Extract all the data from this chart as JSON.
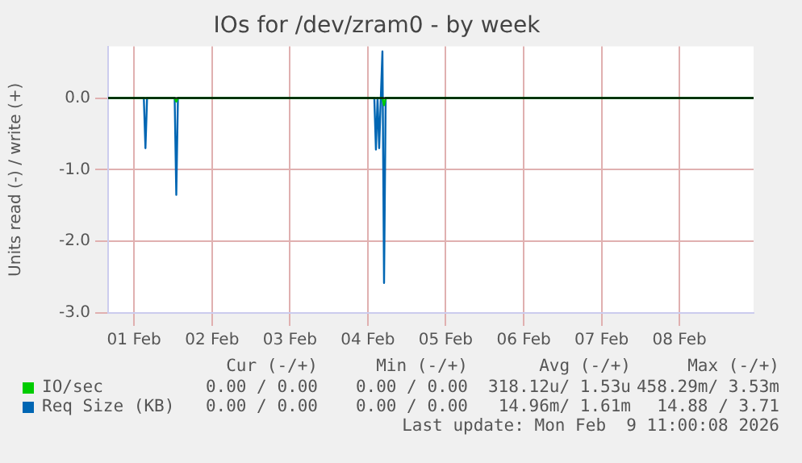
{
  "chart_data": {
    "type": "line",
    "title": "IOs for /dev/zram0 - by week",
    "ylabel": "Units read (-) / write (+)",
    "xlim": [
      "2026-02-01T04:00",
      "2026-02-09T10:50"
    ],
    "xticks": [
      {
        "value": "2026-02-01T12:00",
        "label": "01 Feb"
      },
      {
        "value": "2026-02-02T12:00",
        "label": "02 Feb"
      },
      {
        "value": "2026-02-03T12:00",
        "label": "03 Feb"
      },
      {
        "value": "2026-02-04T12:00",
        "label": "04 Feb"
      },
      {
        "value": "2026-02-05T12:00",
        "label": "05 Feb"
      },
      {
        "value": "2026-02-06T12:00",
        "label": "06 Feb"
      },
      {
        "value": "2026-02-07T12:00",
        "label": "07 Feb"
      },
      {
        "value": "2026-02-08T12:00",
        "label": "08 Feb"
      }
    ],
    "ylim": [
      -3,
      0.72
    ],
    "yticks": [
      {
        "value": -3,
        "label": "-3.0"
      },
      {
        "value": -2,
        "label": "-2.0"
      },
      {
        "value": -1,
        "label": "-1.0"
      },
      {
        "value": 0,
        "label": "0.0"
      }
    ],
    "grid": true,
    "legend": "bottom",
    "marker": "none",
    "ref_lines": [
      {
        "axis": "y",
        "value": 0,
        "color": "#000000"
      }
    ],
    "series": [
      {
        "name": "IO/sec",
        "color": "#00cc00",
        "x": [
          "2026-02-01T04:00",
          "2026-02-02T00:30",
          "2026-02-02T01:00",
          "2026-02-02T01:30",
          "2026-02-04T16:30",
          "2026-02-04T17:00",
          "2026-02-04T17:30",
          "2026-02-09T10:50"
        ],
        "values": [
          0,
          0,
          -0.05,
          0,
          0,
          -0.1,
          0,
          0
        ]
      },
      {
        "name": "Req Size (KB)",
        "color": "#0066b3",
        "x": [
          "2026-02-01T04:00",
          "2026-02-01T15:00",
          "2026-02-01T15:30",
          "2026-02-01T16:00",
          "2026-02-02T00:30",
          "2026-02-02T01:00",
          "2026-02-02T01:30",
          "2026-02-04T14:00",
          "2026-02-04T14:30",
          "2026-02-04T15:00",
          "2026-02-04T15:30",
          "2026-02-04T16:00",
          "2026-02-04T16:30",
          "2026-02-04T17:00",
          "2026-02-04T17:30",
          "2026-02-09T10:50"
        ],
        "values": [
          0,
          0,
          -0.7,
          0,
          0,
          -1.35,
          0,
          0,
          -0.72,
          0,
          -0.7,
          0,
          0.65,
          -2.58,
          0,
          0
        ]
      }
    ],
    "annotations": [
      "Cur (-/+)",
      "Min (-/+)",
      "Avg (-/+)",
      "Max (-/+)",
      "0.00 / 0.00",
      "0.00 / 0.00",
      "318.12u/ 1.53u",
      "458.29m/ 3.53m",
      "0.00 / 0.00",
      "0.00 / 0.00",
      "14.96m/ 1.61m",
      "14.88 / 3.71",
      "Last update: Mon Feb  9 11:00:08 2026"
    ]
  }
}
